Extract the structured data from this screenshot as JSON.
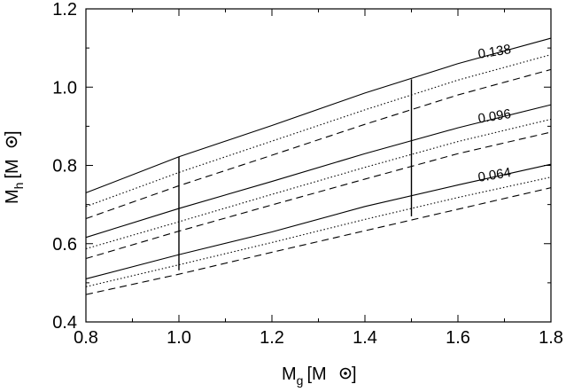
{
  "chart_data": {
    "type": "line",
    "xlabel": {
      "main": "M",
      "sub": "g",
      "unit": "[M",
      "close": "]"
    },
    "ylabel": {
      "main": "M",
      "sub": "h",
      "unit": "[M",
      "close": "]"
    },
    "xlim": [
      0.8,
      1.8
    ],
    "ylim": [
      0.4,
      1.2
    ],
    "xticks": [
      0.8,
      1.0,
      1.2,
      1.4,
      1.6,
      1.8
    ],
    "yticks": [
      0.4,
      0.6,
      0.8,
      1.0,
      1.2
    ],
    "xtick_labels": [
      "0.8",
      "1.0",
      "1.2",
      "1.4",
      "1.6",
      "1.8"
    ],
    "ytick_labels": [
      "0.4",
      "0.6",
      "0.8",
      "1.0",
      "1.2"
    ],
    "x": [
      0.8,
      1.0,
      1.2,
      1.4,
      1.6,
      1.8
    ],
    "groups": [
      {
        "label": "0.138",
        "label_at": [
          1.68,
          1.08
        ],
        "series": [
          {
            "style": "solid",
            "values": [
              0.73,
              0.822,
              0.902,
              0.985,
              1.06,
              1.125
            ]
          },
          {
            "style": "dotted",
            "values": [
              0.695,
              0.782,
              0.862,
              0.942,
              1.018,
              1.083
            ]
          },
          {
            "style": "dashed",
            "values": [
              0.664,
              0.748,
              0.826,
              0.905,
              0.98,
              1.045
            ]
          }
        ]
      },
      {
        "label": "0.096",
        "label_at": [
          1.68,
          0.915
        ],
        "series": [
          {
            "style": "solid",
            "values": [
              0.616,
              0.69,
              0.759,
              0.83,
              0.896,
              0.955
            ]
          },
          {
            "style": "dotted",
            "values": [
              0.587,
              0.656,
              0.726,
              0.795,
              0.861,
              0.918
            ]
          },
          {
            "style": "dashed",
            "values": [
              0.562,
              0.632,
              0.699,
              0.765,
              0.83,
              0.885
            ]
          }
        ]
      },
      {
        "label": "0.064",
        "label_at": [
          1.68,
          0.765
        ],
        "series": [
          {
            "style": "solid",
            "values": [
              0.51,
              0.572,
              0.63,
              0.695,
              0.75,
              0.803
            ]
          },
          {
            "style": "dotted",
            "values": [
              0.49,
              0.546,
              0.603,
              0.662,
              0.718,
              0.77
            ]
          },
          {
            "style": "dashed",
            "values": [
              0.47,
              0.522,
              0.578,
              0.633,
              0.688,
              0.743
            ]
          }
        ]
      }
    ],
    "vertical_segments": [
      {
        "x": 1.0,
        "y": [
          0.532,
          0.822
        ]
      },
      {
        "x": 1.5,
        "y": [
          0.67,
          1.02
        ]
      }
    ]
  }
}
